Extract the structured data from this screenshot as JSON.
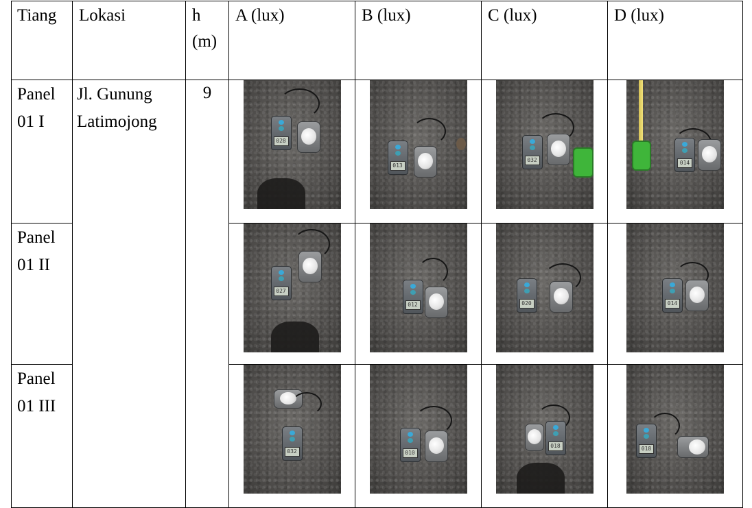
{
  "header": {
    "tiang": "Tiang",
    "lokasi": "Lokasi",
    "h_line1": "h",
    "h_line2": "(m)",
    "col_a": "A (lux)",
    "col_b": "B (lux)",
    "col_c": "C (lux)",
    "col_d": "D (lux)"
  },
  "lokasi": {
    "line1": "Jl. Gunung",
    "line2": "Latimojong"
  },
  "h_value": "9",
  "rows": [
    {
      "tiang_line1": "Panel",
      "tiang_line2": "01 I",
      "readings": [
        "028",
        "013",
        "032",
        "014"
      ]
    },
    {
      "tiang_line1": "Panel",
      "tiang_line2": "01 II",
      "readings": [
        "027",
        "012",
        "020",
        "014"
      ]
    },
    {
      "tiang_line1": "Panel",
      "tiang_line2": "01 III",
      "readings": [
        "032",
        "010",
        "018",
        "018"
      ]
    }
  ],
  "colors": {
    "asphalt": "#5a5856",
    "meter_body": "#6a6f74",
    "meter_button": "#3aa9d8",
    "tape_green": "#3fb53a",
    "ruler_yellow": "#f2e27a"
  }
}
